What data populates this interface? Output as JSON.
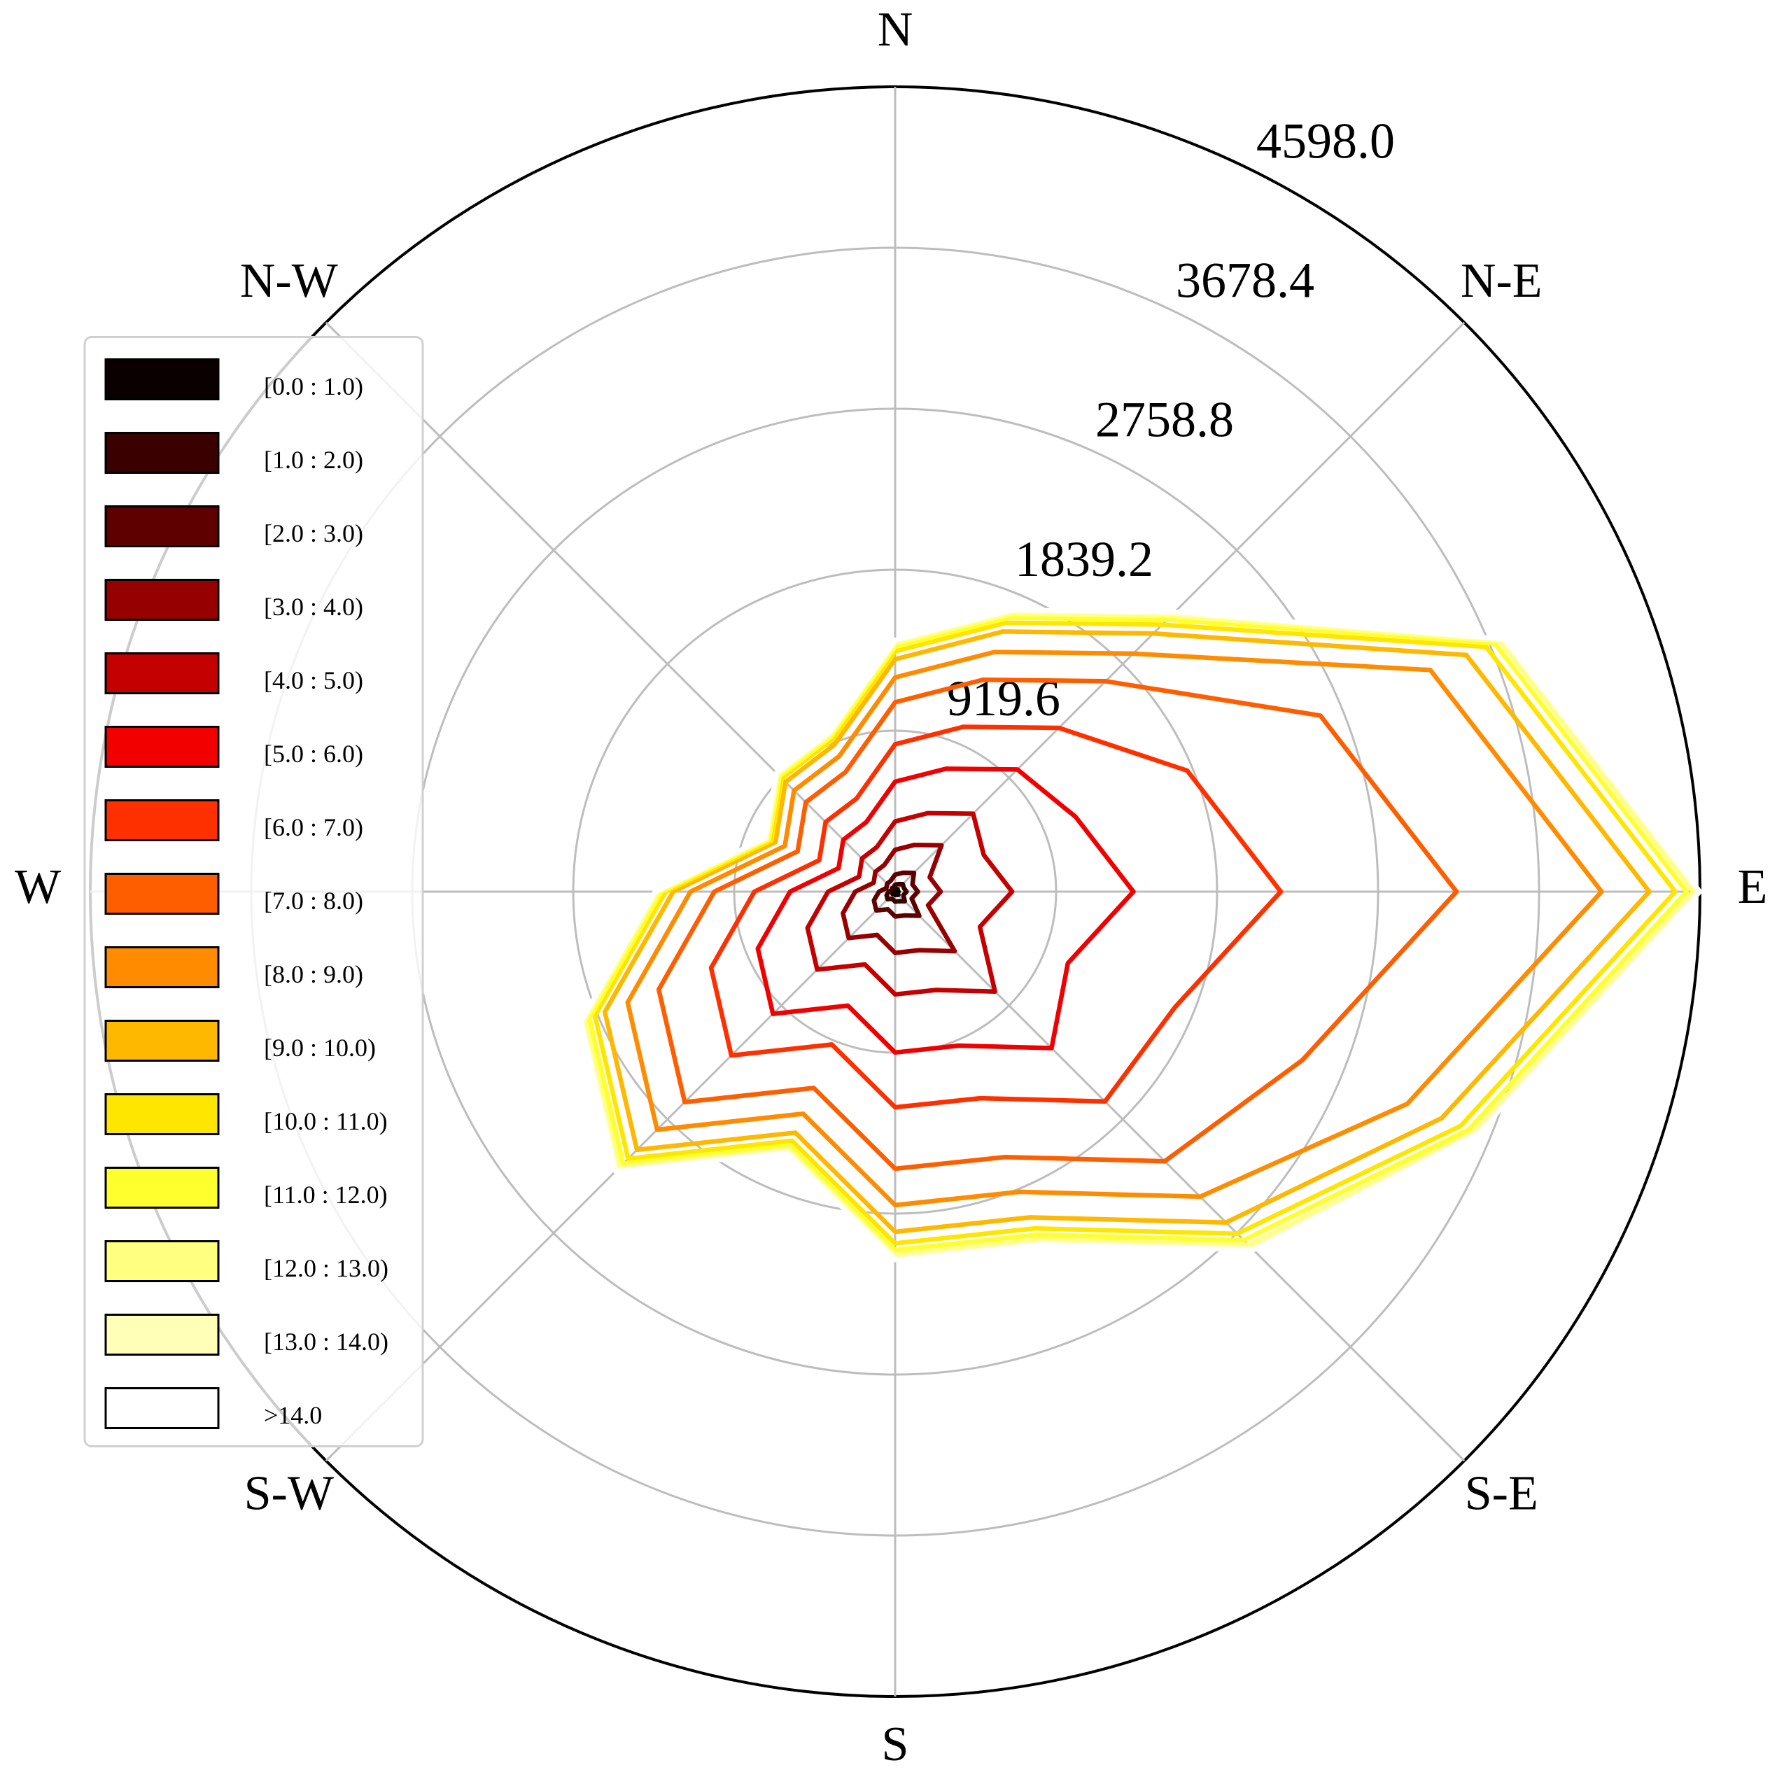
{
  "chart_data": {
    "type": "windrose-contour",
    "x": [
      0,
      22.5,
      45,
      67.5,
      90,
      112.5,
      135,
      157.5,
      180,
      202.5,
      225,
      247.5,
      270,
      292.5,
      315,
      337.5
    ],
    "xticks": [
      {
        "value": 0,
        "label": "N"
      },
      {
        "value": 45,
        "label": "N-E"
      },
      {
        "value": 90,
        "label": "E"
      },
      {
        "value": 135,
        "label": "S-E"
      },
      {
        "value": 180,
        "label": "S"
      },
      {
        "value": 225,
        "label": "S-W"
      },
      {
        "value": 270,
        "label": "W"
      },
      {
        "value": 315,
        "label": "N-W"
      }
    ],
    "ylim": [
      0,
      4598
    ],
    "yticks": [
      919.6,
      1839.2,
      2758.8,
      3678.4,
      {
        "value": 4598,
        "label": "4598.0"
      }
    ],
    "grid": true,
    "legend": "center left",
    "series": [
      {
        "name": "[0.0 : 1.0)",
        "color": "#0a0000",
        "values": [
          13,
          16,
          20,
          16,
          19,
          15,
          26,
          20,
          19,
          15,
          20,
          18,
          12,
          7,
          9,
          9
        ]
      },
      {
        "name": "[1.0 : 2.0)",
        "color": "#3a0000",
        "values": [
          26,
          31,
          41,
          38,
          46,
          36,
          52,
          39,
          38,
          29,
          41,
          35,
          25,
          15,
          17,
          18
        ]
      },
      {
        "name": "[2.0 : 3.0)",
        "color": "#5e0000",
        "values": [
          58,
          70,
          91,
          53,
          65,
          51,
          117,
          88,
          85,
          65,
          91,
          78,
          55,
          32,
          39,
          40
        ]
      },
      {
        "name": "[3.0 : 4.0)",
        "color": "#960000",
        "values": [
          142,
          172,
          223,
          107,
          130,
          102,
          286,
          215,
          208,
          159,
          223,
          192,
          136,
          79,
          95,
          97
        ]
      },
      {
        "name": "[4.0 : 5.0)",
        "color": "#c40000",
        "values": [
          162,
          196,
          255,
          334,
          408,
          320,
          326,
          246,
          237,
          182,
          255,
          219,
          155,
          90,
          108,
          111
        ]
      },
      {
        "name": "[5.0 : 6.0)",
        "color": "#f20000",
        "values": [
          227,
          275,
          357,
          568,
          693,
          544,
          457,
          344,
          332,
          255,
          357,
          307,
          217,
          127,
          151,
          155
        ]
      },
      {
        "name": "[6.0 : 7.0)",
        "color": "#ff3000",
        "values": [
          214,
          259,
          336,
          690,
          842,
          661,
          431,
          325,
          313,
          240,
          336,
          289,
          204,
          119,
          143,
          146
        ]
      },
      {
        "name": "[7.0 : 8.0)",
        "color": "#ff5e00",
        "values": [
          240,
          291,
          377,
          823,
          1004,
          788,
          483,
          364,
          351,
          269,
          377,
          324,
          229,
          134,
          160,
          164
        ]
      },
      {
        "name": "[8.0 : 9.0)",
        "color": "#ff8c00",
        "values": [
          142,
          172,
          223,
          680,
          829,
          650,
          286,
          215,
          208,
          159,
          223,
          192,
          136,
          79,
          95,
          97
        ]
      },
      {
        "name": "[9.0 : 10.0)",
        "color": "#ffb800",
        "values": [
          104,
          126,
          163,
          223,
          272,
          213,
          209,
          158,
          152,
          117,
          163,
          141,
          99,
          58,
          69,
          71
        ]
      },
      {
        "name": "[10.0 : 11.0)",
        "color": "#ffe600",
        "values": [
          45,
          55,
          71,
          122,
          149,
          117,
          91,
          68,
          66,
          50,
          71,
          61,
          43,
          25,
          30,
          31
        ]
      },
      {
        "name": "[11.0 : 12.0)",
        "color": "#ffff2e",
        "values": [
          26,
          31,
          41,
          53,
          65,
          51,
          52,
          39,
          38,
          29,
          41,
          35,
          25,
          15,
          17,
          18
        ]
      },
      {
        "name": "[12.0 : 13.0)",
        "color": "#ffff80",
        "values": [
          19,
          23,
          30,
          32,
          39,
          31,
          38,
          29,
          28,
          21,
          30,
          26,
          18,
          11,
          13,
          13
        ]
      },
      {
        "name": "[13.0 : 14.0)",
        "color": "#ffffb8",
        "values": [
          13,
          16,
          20,
          21,
          26,
          20,
          26,
          20,
          19,
          15,
          20,
          18,
          12,
          7,
          9,
          9
        ]
      },
      {
        "name": ">14.0",
        "color": "#ffffff",
        "values": [
          7,
          9,
          12,
          9,
          11,
          8,
          15,
          11,
          10,
          8,
          12,
          9,
          7,
          4,
          5,
          5
        ]
      }
    ]
  }
}
